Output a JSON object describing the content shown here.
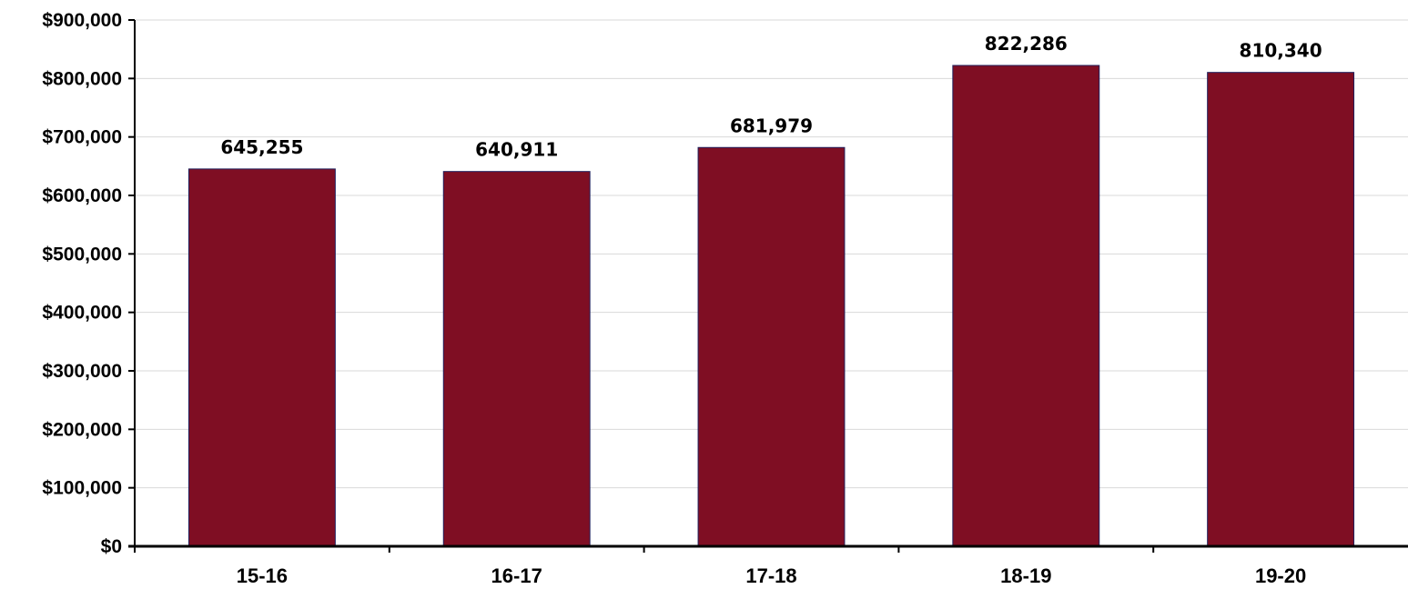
{
  "chart_data": {
    "type": "bar",
    "title": "",
    "xlabel": "",
    "ylabel": "",
    "categories": [
      "15-16",
      "16-17",
      "17-18",
      "18-19",
      "19-20"
    ],
    "values": [
      645255,
      640911,
      681979,
      822286,
      810340
    ],
    "data_labels": [
      "645,255",
      "640,911",
      "681,979",
      "822,286",
      "810,340"
    ],
    "ylim": [
      0,
      900000
    ],
    "yticks": [
      0,
      100000,
      200000,
      300000,
      400000,
      500000,
      600000,
      700000,
      800000,
      900000
    ],
    "ytick_labels": [
      "$0",
      "$100,000",
      "$200,000",
      "$300,000",
      "$400,000",
      "$500,000",
      "$600,000",
      "$700,000",
      "$800,000",
      "$900,000"
    ],
    "grid": true,
    "legend": "none",
    "colors": {
      "bar_fill": "#7F0E23",
      "bar_border": "#1F1F5C",
      "gridline": "#D9D9D9",
      "axis": "#000000"
    }
  }
}
